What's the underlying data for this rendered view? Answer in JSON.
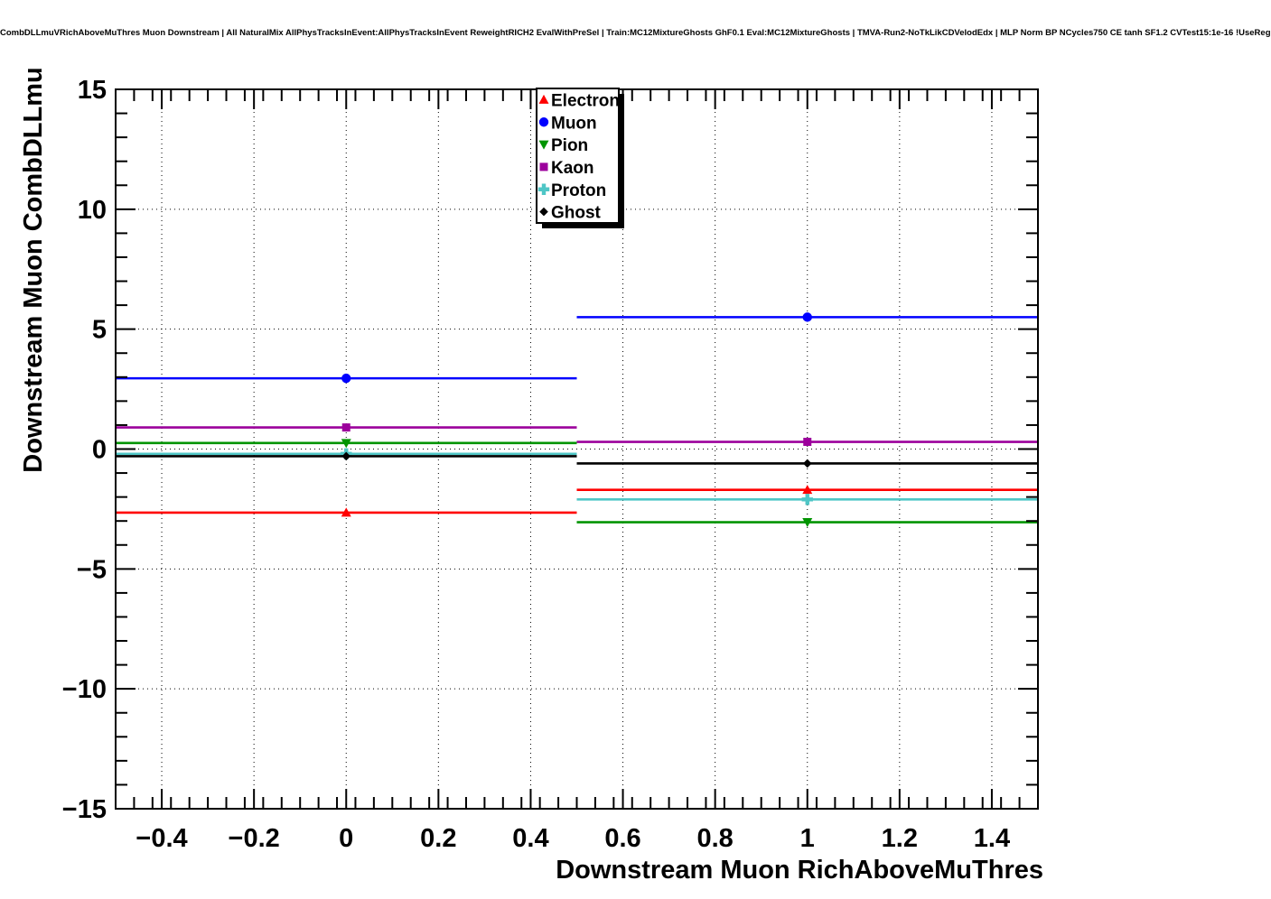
{
  "chart_data": {
    "type": "line",
    "title": "CombDLLmuVRichAboveMuThres Muon Downstream | All NaturalMix AllPhysTracksInEvent:AllPhysTracksInEvent ReweightRICH2 EvalWithPreSel | Train:MC12MixtureGhosts GhF0.1 Eval:MC12MixtureGhosts | TMVA-Run2-NoTkLikCDVelodEdx | MLP Norm BP NCycles750 CE tanh SF1.2 CVTest15:1e-16 !UseReg",
    "xlabel": "Downstream Muon RichAboveMuThres",
    "ylabel": "Downstream Muon CombDLLmu",
    "xlim": [
      -0.5,
      1.5
    ],
    "ylim": [
      -15,
      15
    ],
    "x_tick_values": [
      -0.4,
      -0.2,
      0,
      0.2,
      0.4,
      0.6,
      0.8,
      1,
      1.2,
      1.4
    ],
    "x_tick_labels": [
      "−0.4",
      "−0.2",
      "0",
      "0.2",
      "0.4",
      "0.6",
      "0.8",
      "1",
      "1.2",
      "1.4"
    ],
    "y_tick_values": [
      -15,
      -10,
      -5,
      0,
      5,
      10,
      15
    ],
    "y_tick_labels": [
      "−15",
      "−10",
      "−5",
      "0",
      "5",
      "10",
      "15"
    ],
    "x_minor_step": 0.04,
    "y_minor_step": 1,
    "grid": true,
    "grid_style": "dotted",
    "legend_position": "top-center-inside",
    "bin_edges": [
      -0.5,
      0.5,
      1.5
    ],
    "x": [
      0,
      1
    ],
    "series": [
      {
        "name": "Electron",
        "color": "#ff0000",
        "marker": "triangle-up",
        "values": [
          -2.65,
          -1.7
        ]
      },
      {
        "name": "Muon",
        "color": "#0000ff",
        "marker": "circle",
        "values": [
          2.95,
          5.5
        ]
      },
      {
        "name": "Pion",
        "color": "#009400",
        "marker": "triangle-down",
        "values": [
          0.25,
          -3.05
        ]
      },
      {
        "name": "Kaon",
        "color": "#9c009c",
        "marker": "square",
        "values": [
          0.9,
          0.3
        ]
      },
      {
        "name": "Proton",
        "color": "#4fc6c6",
        "marker": "cross",
        "values": [
          -0.2,
          -2.1
        ]
      },
      {
        "name": "Ghost",
        "color": "#000000",
        "marker": "diamond",
        "values": [
          -0.3,
          -0.6
        ]
      }
    ]
  }
}
